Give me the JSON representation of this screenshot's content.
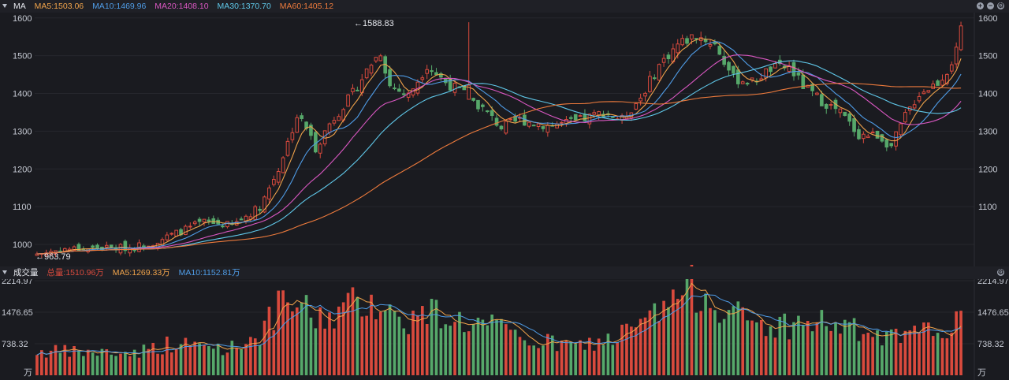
{
  "price_header": {
    "indicator": "MA",
    "ma5": "MA5:1503.06",
    "ma10": "MA10:1469.96",
    "ma20": "MA20:1408.10",
    "ma30": "MA30:1370.70",
    "ma60": "MA60:1405.12"
  },
  "volume_header": {
    "title": "成交量",
    "total": "总量:1510.96万",
    "ma5": "MA5:1269.33万",
    "ma10": "MA10:1152.81万"
  },
  "colors": {
    "up": "#d94a3d",
    "down": "#56a86a",
    "ma5": "#f0a34b",
    "ma10": "#4f9ce6",
    "ma20": "#d957c1",
    "ma30": "#5fc7e8",
    "ma60": "#ec7a3c"
  },
  "chart_data": [
    {
      "type": "candlestick",
      "y_ticks_left": [
        "1600",
        "1500",
        "1400",
        "1300",
        "1200",
        "1100",
        "1000"
      ],
      "y_ticks_right": [
        "1600",
        "1500",
        "1400",
        "1300",
        "1200",
        "1100"
      ],
      "ylim": [
        950,
        1610
      ],
      "annotations": {
        "max": "←1588.83",
        "min": "←963.79"
      },
      "num_candles": 200,
      "close_anchors": [
        [
          0,
          975
        ],
        [
          6,
          988
        ],
        [
          20,
          992
        ],
        [
          25,
          1005
        ],
        [
          32,
          1040
        ],
        [
          36,
          1060
        ],
        [
          42,
          1050
        ],
        [
          48,
          1100
        ],
        [
          52,
          1200
        ],
        [
          56,
          1340
        ],
        [
          58,
          1310
        ],
        [
          60,
          1255
        ],
        [
          63,
          1320
        ],
        [
          68,
          1400
        ],
        [
          72,
          1480
        ],
        [
          74,
          1510
        ],
        [
          76,
          1420
        ],
        [
          80,
          1395
        ],
        [
          84,
          1475
        ],
        [
          88,
          1430
        ],
        [
          92,
          1400
        ],
        [
          96,
          1360
        ],
        [
          100,
          1310
        ],
        [
          104,
          1330
        ],
        [
          110,
          1315
        ],
        [
          116,
          1325
        ],
        [
          122,
          1350
        ],
        [
          126,
          1330
        ],
        [
          130,
          1390
        ],
        [
          134,
          1475
        ],
        [
          138,
          1530
        ],
        [
          142,
          1555
        ],
        [
          146,
          1530
        ],
        [
          150,
          1440
        ],
        [
          154,
          1430
        ],
        [
          158,
          1465
        ],
        [
          162,
          1470
        ],
        [
          165,
          1420
        ],
        [
          169,
          1380
        ],
        [
          173,
          1350
        ],
        [
          177,
          1290
        ],
        [
          181,
          1290
        ],
        [
          184,
          1260
        ],
        [
          187,
          1340
        ],
        [
          190,
          1400
        ],
        [
          194,
          1430
        ],
        [
          196,
          1460
        ],
        [
          198,
          1510
        ],
        [
          199,
          1565
        ]
      ],
      "ma_series": [
        {
          "name": "MA5",
          "period": 5
        },
        {
          "name": "MA10",
          "period": 10
        },
        {
          "name": "MA20",
          "period": 20
        },
        {
          "name": "MA30",
          "period": 30
        },
        {
          "name": "MA60",
          "period": 60
        }
      ]
    },
    {
      "type": "bar",
      "y_ticks": [
        "2214.97",
        "1476.65",
        "738.32"
      ],
      "unit": "万",
      "ylim": [
        0,
        2214.97
      ],
      "volume_anchors": [
        [
          0,
          560
        ],
        [
          20,
          520
        ],
        [
          28,
          720
        ],
        [
          34,
          700
        ],
        [
          42,
          650
        ],
        [
          48,
          980
        ],
        [
          52,
          1550
        ],
        [
          56,
          1700
        ],
        [
          60,
          1300
        ],
        [
          64,
          1450
        ],
        [
          68,
          1650
        ],
        [
          72,
          1850
        ],
        [
          76,
          1450
        ],
        [
          80,
          1300
        ],
        [
          86,
          1500
        ],
        [
          92,
          1250
        ],
        [
          98,
          1150
        ],
        [
          104,
          850
        ],
        [
          110,
          760
        ],
        [
          116,
          680
        ],
        [
          122,
          800
        ],
        [
          128,
          1050
        ],
        [
          134,
          1450
        ],
        [
          138,
          1900
        ],
        [
          142,
          2050
        ],
        [
          146,
          1800
        ],
        [
          152,
          1300
        ],
        [
          158,
          1150
        ],
        [
          164,
          1200
        ],
        [
          170,
          1250
        ],
        [
          176,
          1050
        ],
        [
          182,
          850
        ],
        [
          188,
          900
        ],
        [
          194,
          1100
        ],
        [
          198,
          1250
        ],
        [
          199,
          1510.96
        ]
      ]
    }
  ]
}
